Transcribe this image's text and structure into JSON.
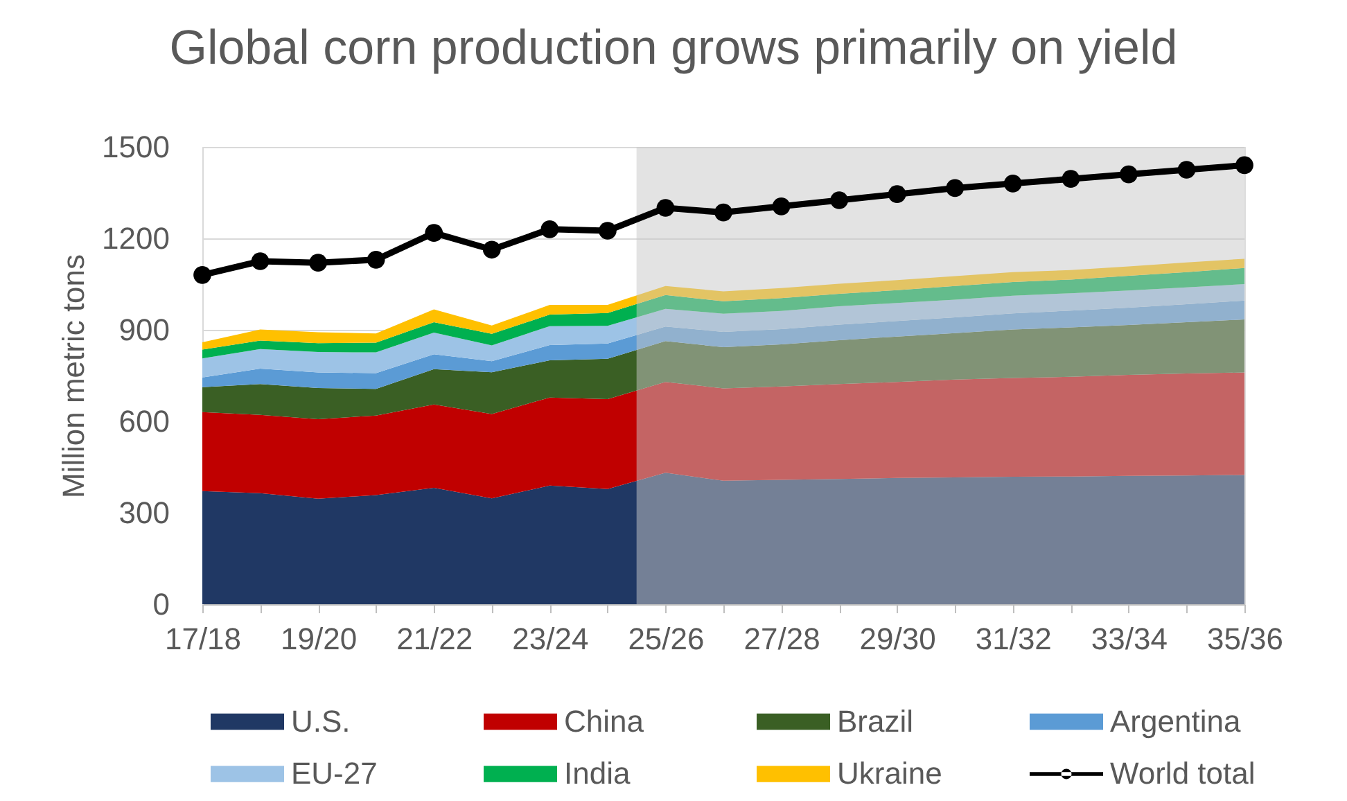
{
  "chart_data": {
    "type": "area",
    "title": "Global corn production grows primarily on yield",
    "ylabel": "Million metric tons",
    "categories": [
      "17/18",
      null,
      "19/20",
      null,
      "21/22",
      null,
      "23/24",
      null,
      "25/26",
      null,
      "27/28",
      null,
      "29/30",
      null,
      "31/32",
      null,
      "33/34",
      null,
      "35/36"
    ],
    "ylim": [
      0,
      1500
    ],
    "yticks": [
      0,
      300,
      600,
      900,
      1200,
      1500
    ],
    "stacked": true,
    "grid": "y",
    "legend": "bottom",
    "series": [
      {
        "name": "U.S.",
        "color": "#203864",
        "values": [
          371,
          364,
          346,
          358,
          382,
          347,
          389,
          378,
          431,
          405,
          408,
          411,
          414,
          416,
          418,
          419,
          421,
          422,
          424
        ]
      },
      {
        "name": "China",
        "color": "#c00000",
        "values": [
          259,
          257,
          261,
          261,
          273,
          277,
          289,
          295,
          298,
          303,
          306,
          311,
          315,
          321,
          324,
          327,
          331,
          335,
          336
        ]
      },
      {
        "name": "Brazil",
        "color": "#3a5f24",
        "values": [
          82,
          101,
          102,
          87,
          116,
          137,
          122,
          132,
          134,
          135,
          138,
          144,
          149,
          152,
          159,
          162,
          164,
          168,
          174
        ]
      },
      {
        "name": "Argentina",
        "color": "#5b9bd5",
        "values": [
          32,
          51,
          51,
          52,
          49,
          36,
          50,
          50,
          48,
          50,
          50,
          51,
          51,
          52,
          53,
          55,
          57,
          59,
          62
        ]
      },
      {
        "name": "EU-27",
        "color": "#9dc3e6",
        "values": [
          62,
          64,
          67,
          68,
          71,
          52,
          62,
          58,
          58,
          60,
          60,
          60,
          59,
          58,
          58,
          57,
          56,
          55,
          54
        ]
      },
      {
        "name": "India",
        "color": "#00b050",
        "values": [
          29,
          28,
          29,
          32,
          34,
          38,
          38,
          42,
          45,
          41,
          42,
          41,
          42,
          45,
          45,
          45,
          48,
          50,
          53
        ]
      },
      {
        "name": "Ukraine",
        "color": "#ffc000",
        "values": [
          24,
          36,
          36,
          30,
          42,
          27,
          32,
          27,
          30,
          32,
          33,
          33,
          33,
          32,
          32,
          31,
          31,
          32,
          30
        ]
      },
      {
        "name": "World total",
        "type": "line",
        "color": "#000000",
        "marker": "circle",
        "line_style": "solid",
        "values": [
          1080,
          1125,
          1120,
          1130,
          1218,
          1163,
          1230,
          1225,
          1300,
          1285,
          1305,
          1325,
          1345,
          1365,
          1380,
          1395,
          1410,
          1425,
          1440
        ]
      }
    ],
    "bands": [
      {
        "axis": "x",
        "from": "25/26",
        "to": "35/36",
        "color": "#c8c8c8"
      }
    ]
  }
}
